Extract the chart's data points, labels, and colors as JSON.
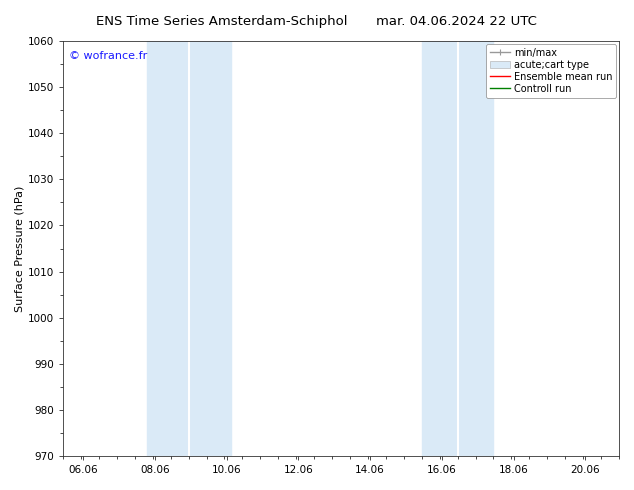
{
  "title_left": "ENS Time Series Amsterdam-Schiphol",
  "title_right": "mar. 04.06.2024 22 UTC",
  "ylabel": "Surface Pressure (hPa)",
  "ylim": [
    970,
    1060
  ],
  "yticks": [
    970,
    980,
    990,
    1000,
    1010,
    1020,
    1030,
    1040,
    1050,
    1060
  ],
  "xlim_start": 5.5,
  "xlim_end": 21.0,
  "xticks": [
    6.06,
    8.06,
    10.06,
    12.06,
    14.06,
    16.06,
    18.06,
    20.06
  ],
  "xtick_labels": [
    "06.06",
    "08.06",
    "10.06",
    "12.06",
    "14.06",
    "16.06",
    "18.06",
    "20.06"
  ],
  "shade_bands": [
    {
      "x_start": 7.83,
      "x_end": 9.0,
      "color": "#daeaf7"
    },
    {
      "x_start": 9.0,
      "x_end": 10.17,
      "color": "#daeaf7"
    },
    {
      "x_start": 15.5,
      "x_end": 16.5,
      "color": "#daeaf7"
    },
    {
      "x_start": 16.5,
      "x_end": 17.5,
      "color": "#daeaf7"
    }
  ],
  "watermark_text": "© wofrance.fr",
  "watermark_color": "#1a1aff",
  "bg_color": "#ffffff",
  "legend_entries": [
    {
      "label": "min/max",
      "color": "#999999",
      "lw": 1.0,
      "type": "minmax"
    },
    {
      "label": "acute;cart type",
      "color": "#daeaf7",
      "lw": 6,
      "type": "fill"
    },
    {
      "label": "Ensemble mean run",
      "color": "#ff0000",
      "lw": 1.0,
      "type": "line"
    },
    {
      "label": "Controll run",
      "color": "#008000",
      "lw": 1.0,
      "type": "line"
    }
  ],
  "title_fontsize": 9.5,
  "tick_fontsize": 7.5,
  "ylabel_fontsize": 8,
  "legend_fontsize": 7,
  "watermark_fontsize": 8
}
